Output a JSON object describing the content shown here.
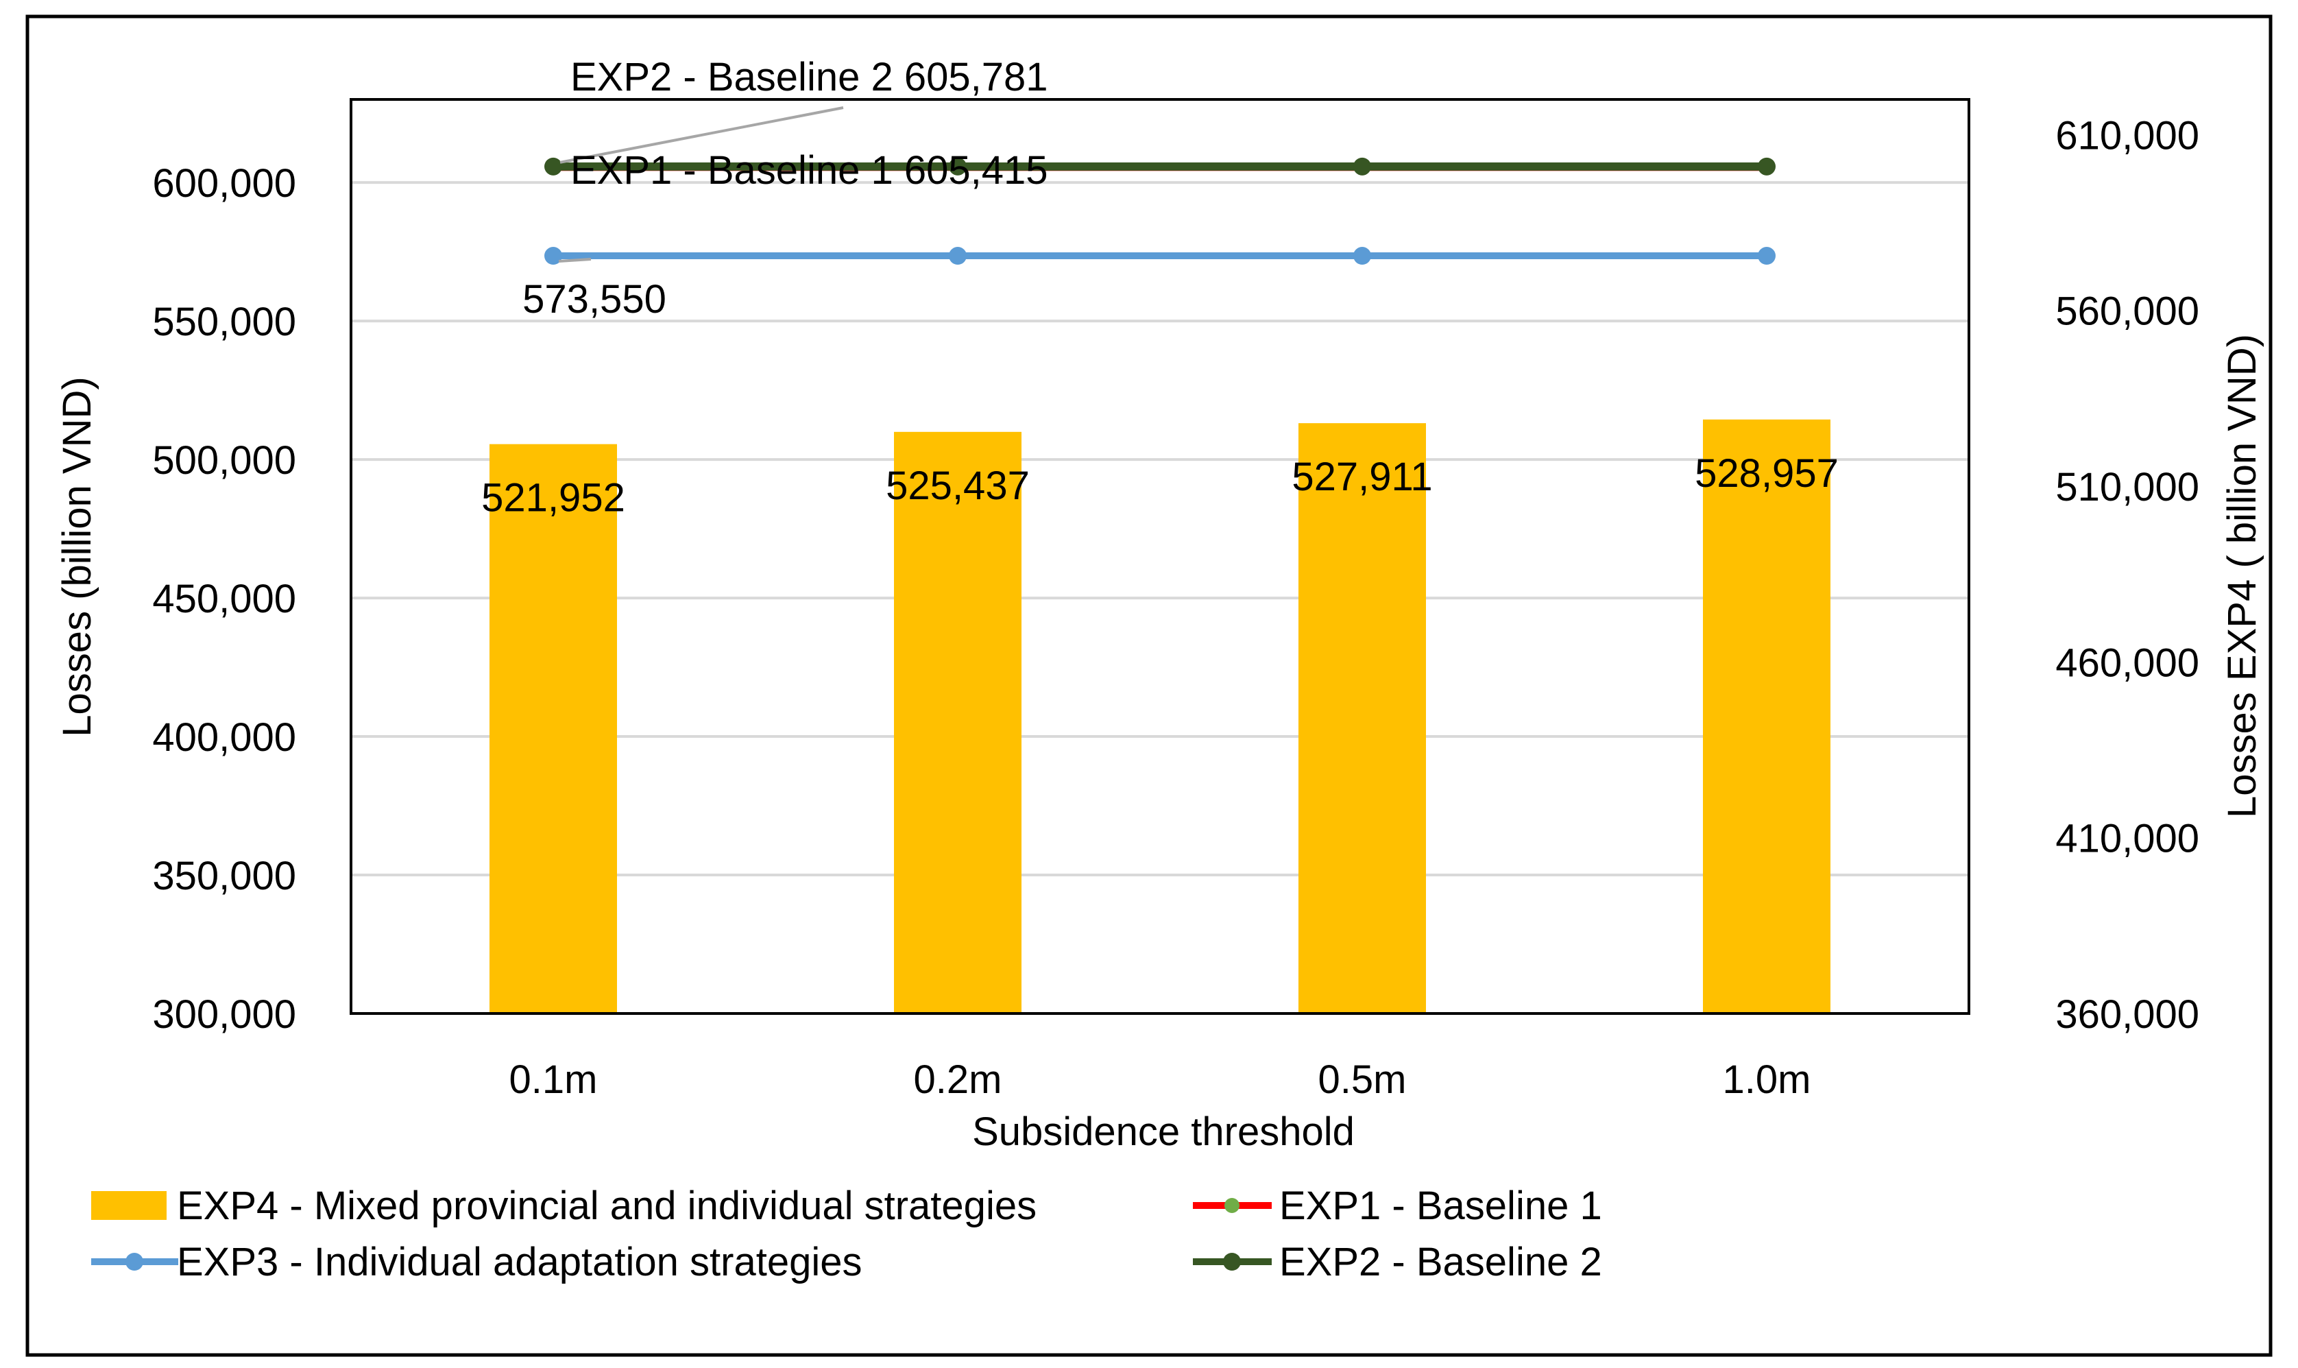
{
  "colors": {
    "exp4": "#FFC000",
    "exp1": "#FF0000",
    "exp1_marker": "#70AD47",
    "exp2": "#375623",
    "exp3": "#5B9BD5",
    "grid": "#D9D9D9",
    "frame": "#000000"
  },
  "chart_data": {
    "type": "bar",
    "title": "",
    "categories": [
      "0.1m",
      "0.2m",
      "0.5m",
      "1.0m"
    ],
    "xlabel": "Subsidence threshold",
    "ylabel": "Losses (billion VND)",
    "y2label": "Losses  EXP4 ( billion VND)",
    "ylim": [
      300000,
      630000
    ],
    "y2lim": [
      360000,
      620000
    ],
    "yticks": [
      300000,
      350000,
      400000,
      450000,
      500000,
      550000,
      600000
    ],
    "ytick_labels": [
      "300,000",
      "350,000",
      "400,000",
      "450,000",
      "500,000",
      "550,000",
      "600,000"
    ],
    "y2ticks": [
      360000,
      410000,
      460000,
      510000,
      560000,
      610000
    ],
    "y2tick_labels": [
      "360,000",
      "410,000",
      "460,000",
      "510,000",
      "560,000",
      "610,000"
    ],
    "grid": true,
    "legend_position": "bottom",
    "series": [
      {
        "name": "EXP4 - Mixed provincial and individual strategies",
        "type": "bar",
        "axis": "secondary",
        "values": [
          521952,
          525437,
          527911,
          528957
        ],
        "value_labels": [
          "521,952",
          "525,437",
          "527,911",
          "528,957"
        ]
      },
      {
        "name": "EXP1 - Baseline 1",
        "type": "line",
        "axis": "primary",
        "values": [
          605415,
          605415,
          605415,
          605415
        ],
        "annotation": "EXP1 - Baseline 1   605,415"
      },
      {
        "name": "EXP3 - Individual adaptation strategies",
        "type": "line",
        "axis": "primary",
        "values": [
          573550,
          573550,
          573550,
          573550
        ],
        "annotation": "573,550"
      },
      {
        "name": "EXP2 - Baseline 2",
        "type": "line",
        "axis": "primary",
        "values": [
          605781,
          605781,
          605781,
          605781
        ],
        "annotation": "EXP2 - Baseline 2   605,781"
      }
    ],
    "legend": [
      "EXP4 - Mixed provincial and individual strategies",
      "EXP1 - Baseline 1",
      "EXP3 - Individual adaptation strategies",
      "EXP2 - Baseline 2"
    ]
  }
}
